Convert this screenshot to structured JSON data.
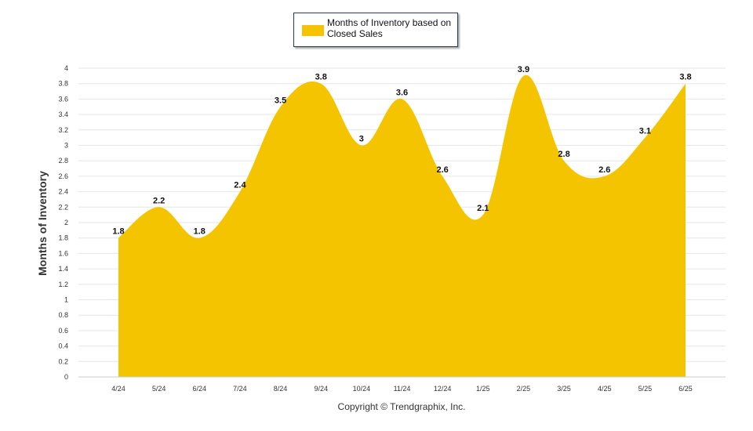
{
  "chart_data": {
    "type": "area",
    "categories": [
      "4/24",
      "5/24",
      "6/24",
      "7/24",
      "8/24",
      "9/24",
      "10/24",
      "11/24",
      "12/24",
      "1/25",
      "2/25",
      "3/25",
      "4/25",
      "5/25",
      "6/25"
    ],
    "series": [
      {
        "name": "Months of Inventory based on Closed Sales",
        "values": [
          1.8,
          2.2,
          1.8,
          2.4,
          3.5,
          3.8,
          3,
          3.6,
          2.6,
          2.1,
          3.9,
          2.8,
          2.6,
          3.1,
          3.8
        ],
        "data_labels": [
          "1.8",
          "2.2",
          "1.8",
          "2.4",
          "3.5",
          "3.8",
          "3",
          "3.6",
          "2.6",
          "2.1",
          "3.9",
          "2.8",
          "2.6",
          "3.1",
          "3.8"
        ]
      }
    ],
    "ylabel": "Months of Inventory",
    "xlabel": "",
    "ylim": [
      0,
      4
    ],
    "yticks": [
      "0",
      "0.2",
      "0.4",
      "0.6",
      "0.8",
      "1",
      "1.2",
      "1.4",
      "1.6",
      "1.8",
      "2",
      "2.2",
      "2.4",
      "2.6",
      "2.8",
      "3",
      "3.2",
      "3.4",
      "3.6",
      "3.8",
      "4"
    ],
    "grid": true,
    "legend_position": "top-center",
    "fill_color": "#f5c400"
  },
  "legend": {
    "label": "Months of Inventory based on Closed Sales"
  },
  "footer": {
    "copyright": "Copyright © Trendgraphix, Inc."
  }
}
